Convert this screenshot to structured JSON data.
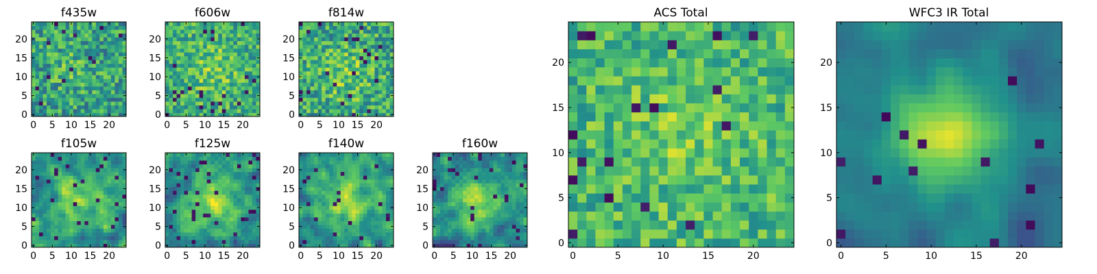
{
  "chart_data": {
    "type": "heatmap",
    "colormap": "viridis",
    "colormap_stops": [
      "#440154",
      "#3b528b",
      "#21918c",
      "#5ec962",
      "#fde725"
    ],
    "grid_size": 25,
    "panels": [
      {
        "id": "f435w",
        "title": "f435w",
        "xlim": [
          0,
          24
        ],
        "ylim": [
          0,
          24
        ],
        "xticks": [
          "0",
          "5",
          "10",
          "15",
          "20"
        ],
        "yticks": [
          "0",
          "5",
          "10",
          "15",
          "20"
        ],
        "texture": {
          "seed": 11,
          "noise": 0.5,
          "blob_strength": 0.1,
          "blob_center": [
            10,
            12
          ],
          "blob_sigma": 5,
          "smooth": 0,
          "base": 0.56,
          "dark_fraction": 0.03
        }
      },
      {
        "id": "f606w",
        "title": "f606w",
        "xlim": [
          0,
          24
        ],
        "ylim": [
          0,
          24
        ],
        "xticks": [
          "0",
          "5",
          "10",
          "15",
          "20"
        ],
        "yticks": [
          "0",
          "5",
          "10",
          "15",
          "20"
        ],
        "texture": {
          "seed": 23,
          "noise": 0.45,
          "blob_strength": 0.15,
          "blob_center": [
            12,
            12
          ],
          "blob_sigma": 5,
          "smooth": 0,
          "base": 0.62,
          "dark_fraction": 0.03
        }
      },
      {
        "id": "f814w",
        "title": "f814w",
        "xlim": [
          0,
          24
        ],
        "ylim": [
          0,
          24
        ],
        "xticks": [
          "0",
          "5",
          "10",
          "15",
          "20"
        ],
        "yticks": [
          "0",
          "5",
          "10",
          "15",
          "20"
        ],
        "texture": {
          "seed": 37,
          "noise": 0.5,
          "blob_strength": 0.15,
          "blob_center": [
            12,
            11
          ],
          "blob_sigma": 5,
          "smooth": 0,
          "base": 0.6,
          "dark_fraction": 0.04
        }
      },
      {
        "id": "f105w",
        "title": "f105w",
        "xlim": [
          0,
          24
        ],
        "ylim": [
          0,
          24
        ],
        "xticks": [
          "0",
          "5",
          "10",
          "15",
          "20"
        ],
        "yticks": [
          "0",
          "5",
          "10",
          "15",
          "20"
        ],
        "texture": {
          "seed": 51,
          "noise": 0.55,
          "blob_strength": 0.3,
          "blob_center": [
            12,
            12
          ],
          "blob_sigma": 5,
          "smooth": 1,
          "base": 0.52,
          "dark_fraction": 0.04
        }
      },
      {
        "id": "f125w",
        "title": "f125w",
        "xlim": [
          0,
          24
        ],
        "ylim": [
          0,
          24
        ],
        "xticks": [
          "0",
          "5",
          "10",
          "15",
          "20"
        ],
        "yticks": [
          "0",
          "5",
          "10",
          "15",
          "20"
        ],
        "texture": {
          "seed": 67,
          "noise": 0.55,
          "blob_strength": 0.35,
          "blob_center": [
            12,
            12
          ],
          "blob_sigma": 5,
          "smooth": 1,
          "base": 0.5,
          "dark_fraction": 0.04
        }
      },
      {
        "id": "f140w",
        "title": "f140w",
        "xlim": [
          0,
          24
        ],
        "ylim": [
          0,
          24
        ],
        "xticks": [
          "0",
          "5",
          "10",
          "15",
          "20"
        ],
        "yticks": [
          "0",
          "5",
          "10",
          "15",
          "20"
        ],
        "texture": {
          "seed": 79,
          "noise": 0.55,
          "blob_strength": 0.35,
          "blob_center": [
            12,
            12
          ],
          "blob_sigma": 5,
          "smooth": 1,
          "base": 0.52,
          "dark_fraction": 0.04
        }
      },
      {
        "id": "f160w",
        "title": "f160w",
        "xlim": [
          0,
          24
        ],
        "ylim": [
          0,
          24
        ],
        "xticks": [
          "0",
          "5",
          "10",
          "15",
          "20"
        ],
        "yticks": [
          "0",
          "5",
          "10",
          "15",
          "20"
        ],
        "texture": {
          "seed": 97,
          "noise": 0.55,
          "blob_strength": 0.35,
          "blob_center": [
            11,
            12
          ],
          "blob_sigma": 4,
          "smooth": 1,
          "base": 0.48,
          "dark_fraction": 0.05
        }
      },
      {
        "id": "acs-total",
        "title": "ACS Total",
        "xlim": [
          0,
          24
        ],
        "ylim": [
          0,
          24
        ],
        "xticks": [
          "0",
          "5",
          "10",
          "15",
          "20"
        ],
        "yticks": [
          "0",
          "5",
          "10",
          "15",
          "20"
        ],
        "texture": {
          "seed": 113,
          "noise": 0.4,
          "blob_strength": 0.1,
          "blob_center": [
            12,
            12
          ],
          "blob_sigma": 5,
          "smooth": 0,
          "base": 0.66,
          "dark_fraction": 0.035
        }
      },
      {
        "id": "wfc3-ir-total",
        "title": "WFC3 IR Total",
        "xlim": [
          0,
          24
        ],
        "ylim": [
          0,
          24
        ],
        "xticks": [
          "0",
          "5",
          "10",
          "15",
          "20"
        ],
        "yticks": [
          "0",
          "5",
          "10",
          "15",
          "20"
        ],
        "texture": {
          "seed": 131,
          "noise": 0.28,
          "blob_strength": 0.55,
          "blob_center": [
            12,
            12
          ],
          "blob_sigma": 4,
          "smooth": 2,
          "base": 0.4,
          "dark_fraction": 0.03
        }
      }
    ]
  }
}
